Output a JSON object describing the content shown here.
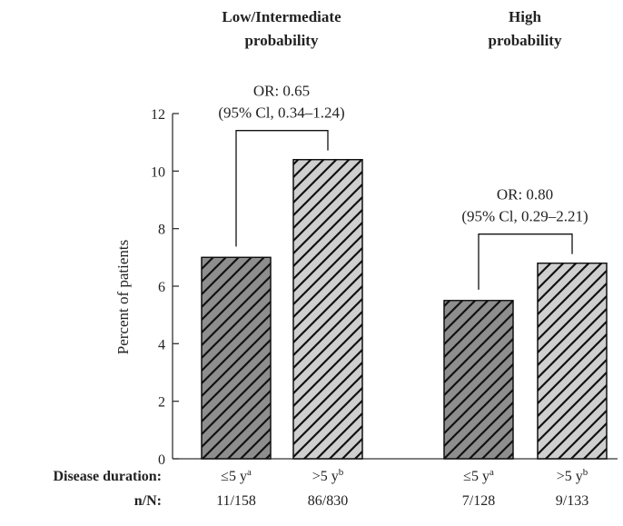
{
  "chart_data": {
    "type": "bar",
    "ylabel": "Percent of patients",
    "ylim": [
      0,
      12
    ],
    "yticks": [
      0,
      2,
      4,
      6,
      8,
      10,
      12
    ],
    "groups": [
      {
        "title_line1": "Low/Intermediate",
        "title_line2": "probability",
        "or_line1": "OR: 0.65",
        "or_line2": "(95% Cl, 0.34–1.24)",
        "bars": [
          {
            "value": 7.0,
            "duration": "≤5 y",
            "sup": "a",
            "nN": "11/158",
            "fill": "#8e8e8e"
          },
          {
            "value": 10.4,
            "duration": ">5 y",
            "sup": "b",
            "nN": "86/830",
            "fill": "#cfcfcf"
          }
        ]
      },
      {
        "title_line1": "High",
        "title_line2": "probability",
        "or_line1": "OR: 0.80",
        "or_line2": "(95% Cl, 0.29–2.21)",
        "bars": [
          {
            "value": 5.5,
            "duration": "≤5 y",
            "sup": "a",
            "nN": "7/128",
            "fill": "#8e8e8e"
          },
          {
            "value": 6.8,
            "duration": ">5 y",
            "sup": "b",
            "nN": "9/133",
            "fill": "#cfcfcf"
          }
        ]
      }
    ],
    "row_labels": {
      "duration": "Disease duration:",
      "nN": "n/N:"
    },
    "colors": {
      "short_duration_bar": "#8e8e8e",
      "long_duration_bar": "#cfcfcf",
      "hatch": "#111111",
      "axis": "#333333"
    }
  }
}
